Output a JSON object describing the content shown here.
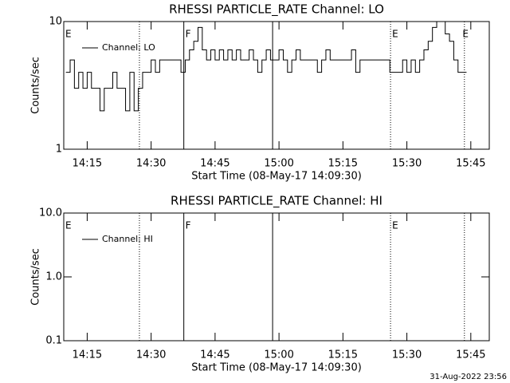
{
  "chart_data": [
    {
      "type": "line",
      "title": "RHESSI PARTICLE_RATE Channel: LO",
      "xlabel": "Start Time (08-May-17 14:09:30)",
      "ylabel": "Counts/sec",
      "log_y": true,
      "ylim": [
        1,
        10
      ],
      "yticks": [
        1,
        10
      ],
      "xlim": [
        "14:09:30",
        "15:49:20"
      ],
      "xticks": [
        "14:15",
        "14:30",
        "14:45",
        "15:00",
        "15:15",
        "15:30",
        "15:45"
      ],
      "x": [
        "14:10",
        "14:11",
        "14:12",
        "14:13",
        "14:14",
        "14:15",
        "14:16",
        "14:17",
        "14:18",
        "14:19",
        "14:20",
        "14:21",
        "14:22",
        "14:23",
        "14:24",
        "14:25",
        "14:26",
        "14:27",
        "14:28",
        "14:29",
        "14:30",
        "14:31",
        "14:32",
        "14:33",
        "14:34",
        "14:35",
        "14:36",
        "14:37",
        "14:38",
        "14:39",
        "14:40",
        "14:41",
        "14:42",
        "14:43",
        "14:44",
        "14:45",
        "14:46",
        "14:47",
        "14:48",
        "14:49",
        "14:50",
        "14:51",
        "14:52",
        "14:53",
        "14:54",
        "14:55",
        "14:56",
        "14:57",
        "14:58",
        "14:59",
        "15:00",
        "15:01",
        "15:02",
        "15:03",
        "15:04",
        "15:05",
        "15:06",
        "15:07",
        "15:08",
        "15:09",
        "15:10",
        "15:11",
        "15:12",
        "15:13",
        "15:14",
        "15:15",
        "15:16",
        "15:17",
        "15:18",
        "15:19",
        "15:20",
        "15:21",
        "15:22",
        "15:23",
        "15:24",
        "15:25",
        "15:26",
        "15:27",
        "15:28",
        "15:29",
        "15:30",
        "15:31",
        "15:32",
        "15:33",
        "15:34",
        "15:35",
        "15:36",
        "15:37",
        "15:38",
        "15:39",
        "15:40",
        "15:41",
        "15:42",
        "15:43",
        "15:44"
      ],
      "series": [
        {
          "name": "Channel: LO",
          "color": "#000000",
          "values": [
            4,
            5,
            3,
            4,
            3,
            4,
            3,
            3,
            2,
            3,
            3,
            4,
            3,
            3,
            2,
            4,
            2,
            3,
            4,
            4,
            5,
            4,
            5,
            5,
            5,
            5,
            5,
            4,
            5,
            6,
            7,
            9,
            6,
            5,
            6,
            5,
            6,
            5,
            6,
            5,
            6,
            5,
            5,
            6,
            5,
            4,
            5,
            6,
            5,
            5,
            6,
            5,
            4,
            5,
            6,
            5,
            5,
            5,
            5,
            4,
            5,
            6,
            5,
            5,
            5,
            5,
            5,
            6,
            4,
            5,
            5,
            5,
            5,
            5,
            5,
            5,
            4,
            4,
            4,
            5,
            4,
            5,
            4,
            5,
            6,
            7,
            9,
            10,
            10,
            8,
            7,
            5,
            4,
            4,
            4
          ]
        }
      ],
      "lines": [
        {
          "x": "14:27:15",
          "style": "dotted"
        },
        {
          "x": "14:37:40",
          "style": "solid"
        },
        {
          "x": "14:58:30",
          "style": "solid"
        },
        {
          "x": "15:26:10",
          "style": "dotted"
        },
        {
          "x": "15:43:30",
          "style": "dotted"
        }
      ],
      "labels": [
        {
          "text": "E",
          "x": "14:09:30"
        },
        {
          "text": "F",
          "x": "14:37:40"
        },
        {
          "text": "E",
          "x": "15:26:10"
        },
        {
          "text": "E",
          "x": "15:42:40"
        }
      ]
    },
    {
      "type": "line",
      "title": "RHESSI PARTICLE_RATE Channel: HI",
      "xlabel": "Start Time (08-May-17 14:09:30)",
      "ylabel": "Counts/sec",
      "log_y": true,
      "ylim": [
        0.1,
        10
      ],
      "yticks": [
        {
          "value": 0.1,
          "label": "0.1"
        },
        {
          "value": 1,
          "label": "1.0"
        },
        {
          "value": 10,
          "label": "10.0"
        }
      ],
      "xlim": [
        "14:09:30",
        "15:49:20"
      ],
      "xticks": [
        "14:15",
        "14:30",
        "14:45",
        "15:00",
        "15:15",
        "15:30",
        "15:45"
      ],
      "x": [],
      "series": [
        {
          "name": "Channel: HI",
          "color": "#000000",
          "values": []
        }
      ],
      "lines": [
        {
          "x": "14:27:15",
          "style": "dotted"
        },
        {
          "x": "14:37:40",
          "style": "solid"
        },
        {
          "x": "14:58:30",
          "style": "solid"
        },
        {
          "x": "15:26:10",
          "style": "dotted"
        },
        {
          "x": "15:43:30",
          "style": "dotted"
        }
      ],
      "labels": [
        {
          "text": "E",
          "x": "14:09:30"
        },
        {
          "text": "F",
          "x": "14:37:40"
        },
        {
          "text": "E",
          "x": "15:26:10"
        }
      ]
    }
  ],
  "footer": "31-Aug-2022 23:56"
}
